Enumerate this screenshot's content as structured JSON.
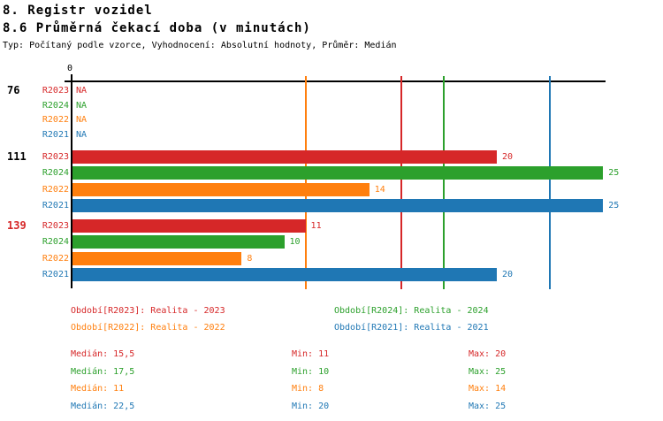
{
  "header": {
    "title": "8. Registr vozidel",
    "subtitle": "8.6 Průměrná čekací doba (v minutách)",
    "meta": "Typ: Počítaný podle vzorce, Vyhodnocení: Absolutní hodnoty, Průměr: Medián"
  },
  "series": {
    "R2023": {
      "label": "R2023",
      "color": "#d62728"
    },
    "R2024": {
      "label": "R2024",
      "color": "#2ca02c"
    },
    "R2022": {
      "label": "R2022",
      "color": "#ff7f0e"
    },
    "R2021": {
      "label": "R2021",
      "color": "#1f77b4"
    }
  },
  "chart_data": {
    "type": "bar",
    "orientation": "horizontal",
    "title": "8.6 Průměrná čekací doba (v minutách)",
    "xlabel": "",
    "ylabel": "",
    "xlim": [
      0,
      25.1
    ],
    "origin_tick_label": "0",
    "na_text": "NA",
    "grid": "off",
    "series_order": [
      "R2023",
      "R2024",
      "R2022",
      "R2021"
    ],
    "groups": [
      {
        "label": "76",
        "label_color": "#000000",
        "values": [
          null,
          null,
          null,
          null
        ],
        "value_labels": [
          "NA",
          "NA",
          "NA",
          "NA"
        ]
      },
      {
        "label": "111",
        "label_color": "#000000",
        "values": [
          20,
          25,
          14,
          25
        ],
        "value_labels": [
          "20",
          "25",
          "14",
          "25"
        ]
      },
      {
        "label": "139",
        "label_color": "#d62728",
        "values": [
          11,
          10,
          8,
          20
        ],
        "value_labels": [
          "11",
          "10",
          "8",
          "20"
        ]
      }
    ],
    "median_lines": [
      {
        "series": "R2023",
        "value": 15.5
      },
      {
        "series": "R2024",
        "value": 17.5
      },
      {
        "series": "R2022",
        "value": 11
      },
      {
        "series": "R2021",
        "value": 22.5
      }
    ]
  },
  "legend": {
    "items": [
      {
        "series": "R2023",
        "label": "Období[R2023]: Realita - 2023"
      },
      {
        "series": "R2024",
        "label": "Období[R2024]: Realita - 2024"
      },
      {
        "series": "R2022",
        "label": "Období[R2022]: Realita - 2022"
      },
      {
        "series": "R2021",
        "label": "Období[R2021]: Realita - 2021"
      }
    ]
  },
  "stats": {
    "median_label": "Medián",
    "min_label": "Min",
    "max_label": "Max",
    "rows": [
      {
        "series": "R2023",
        "median": "15,5",
        "min": "11",
        "max": "20"
      },
      {
        "series": "R2024",
        "median": "17,5",
        "min": "10",
        "max": "25"
      },
      {
        "series": "R2022",
        "median": "11",
        "min": "8",
        "max": "14"
      },
      {
        "series": "R2021",
        "median": "22,5",
        "min": "20",
        "max": "25"
      }
    ]
  }
}
